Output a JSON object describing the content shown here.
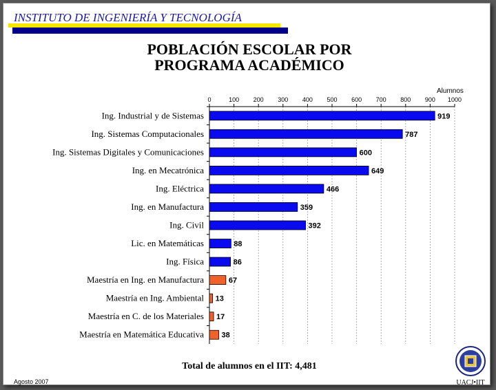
{
  "header": {
    "institute": "INSTITUTO DE INGENIERÍA Y TECNOLOGÍA",
    "title_line1": "POBLACIÓN ESCOLAR POR",
    "title_line2": "PROGRAMA ACADÉMICO"
  },
  "footer": {
    "total": "Total de alumnos en el IIT: 4,481",
    "date": "Agosto 2007",
    "logo_text": "UACJ•IIT"
  },
  "colors": {
    "undergrad": "#0a0aee",
    "graduate": "#f0622a",
    "header_bar": "#00008b",
    "header_accent": "#f5e600"
  },
  "chart_data": {
    "type": "bar",
    "orientation": "horizontal",
    "units_label": "Alumnos",
    "xlim": [
      0,
      1000
    ],
    "ticks": [
      0,
      100,
      200,
      300,
      400,
      500,
      600,
      700,
      800,
      900,
      1000
    ],
    "grid": true,
    "categories": [
      "Ing. Industrial y de Sistemas",
      "Ing. Sistemas Computacionales",
      "Ing. Sistemas Digitales y Comunicaciones",
      "Ing. en Mecatrónica",
      "Ing. Eléctrica",
      "Ing. en Manufactura",
      "Ing. Civil",
      "Lic. en Matemáticas",
      "Ing. Física",
      "Maestría en Ing. en Manufactura",
      "Maestría en Ing. Ambiental",
      "Maestría en  C. de los Materiales",
      "Maestría en Matemática Educativa"
    ],
    "values": [
      919,
      787,
      600,
      649,
      466,
      359,
      392,
      88,
      86,
      67,
      13,
      17,
      38
    ],
    "groups": [
      "undergrad",
      "undergrad",
      "undergrad",
      "undergrad",
      "undergrad",
      "undergrad",
      "undergrad",
      "undergrad",
      "undergrad",
      "graduate",
      "graduate",
      "graduate",
      "graduate"
    ]
  }
}
